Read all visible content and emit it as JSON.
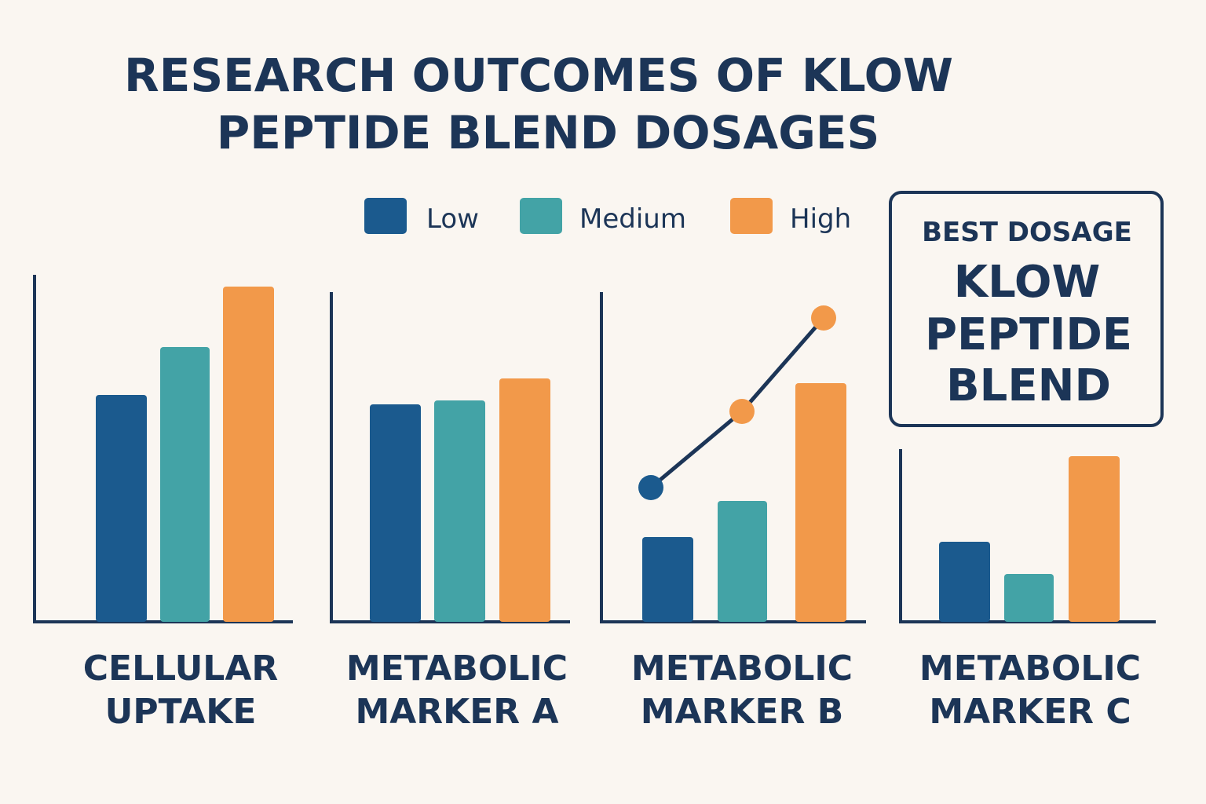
{
  "colors": {
    "low": "#1b5a8e",
    "medium": "#43a3a6",
    "high": "#f2994a",
    "ink": "#1c3557",
    "background": "#faf6f1"
  },
  "chart_data": {
    "type": "bar",
    "title": [
      "RESEARCH OUTCOMES OF KLOW",
      "PEPTIDE BLEND DOSAGES"
    ],
    "legend": {
      "position": "top",
      "entries": [
        "Low",
        "Medium",
        "High"
      ]
    },
    "grid": false,
    "axis_ticks": false,
    "ylim": [
      0,
      450
    ],
    "panels": [
      {
        "label": [
          "CELLULAR",
          "UPTAKE"
        ],
        "values": [
          289,
          350,
          427
        ]
      },
      {
        "label": [
          "METABOLIC",
          "MARKER A"
        ],
        "values": [
          277,
          282,
          310
        ]
      },
      {
        "label": [
          "METABOLIC",
          "MARKER B"
        ],
        "values": [
          108,
          154,
          304
        ],
        "line": {
          "values": [
            171,
            268,
            387
          ],
          "point_colors": [
            "low",
            "high",
            "high"
          ]
        }
      },
      {
        "label": [
          "METABOLIC",
          "MARKER C"
        ],
        "values": [
          102,
          61,
          211
        ]
      }
    ]
  },
  "callout": {
    "heading": "BEST DOSAGE",
    "lines": [
      "KLOW",
      "PEPTIDE",
      "BLEND"
    ]
  }
}
